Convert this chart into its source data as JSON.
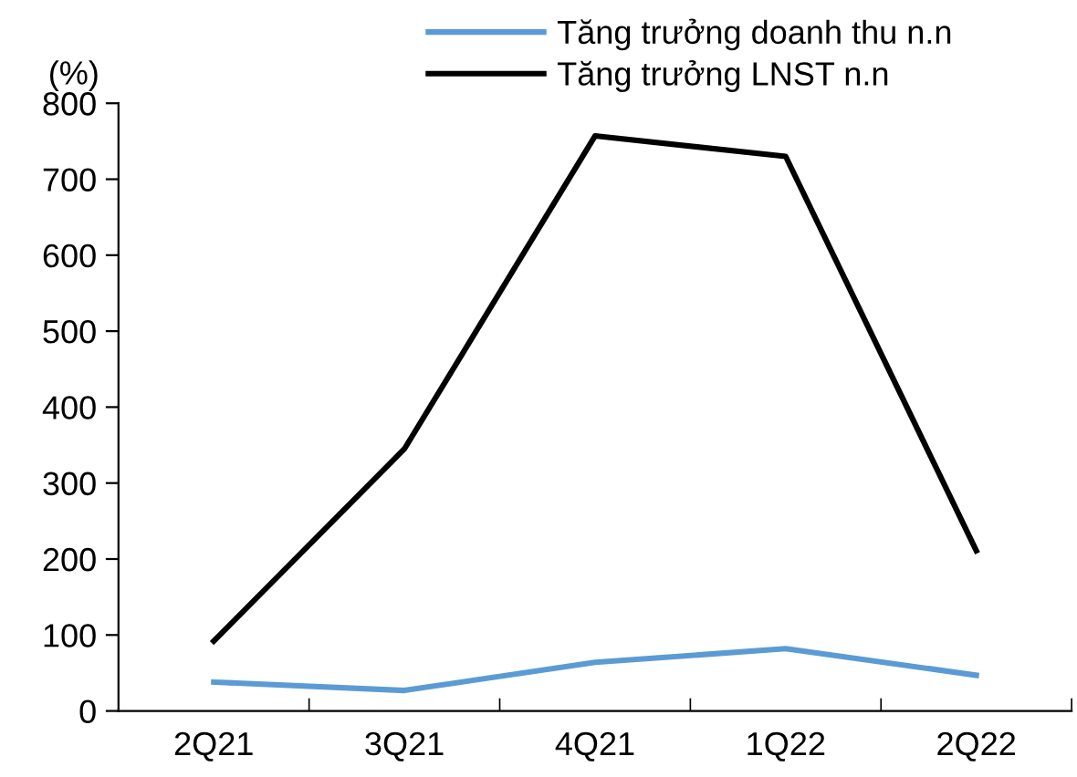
{
  "chart_data": {
    "type": "line",
    "ylabel": "(%)",
    "categories": [
      "2Q21",
      "3Q21",
      "4Q21",
      "1Q22",
      "2Q22"
    ],
    "series": [
      {
        "name": "Tăng trưởng doanh thu n.n",
        "color": "#5b9bd5",
        "values": [
          38,
          27,
          64,
          82,
          47
        ]
      },
      {
        "name": "Tăng trưởng LNST n.n",
        "color": "#000000",
        "values": [
          92,
          345,
          757,
          730,
          211
        ]
      }
    ],
    "ylim": [
      0,
      800
    ],
    "yticks": [
      0,
      100,
      200,
      300,
      400,
      500,
      600,
      700,
      800
    ],
    "grid": false,
    "legend": "top",
    "marker": "none",
    "line_style": "solid"
  }
}
